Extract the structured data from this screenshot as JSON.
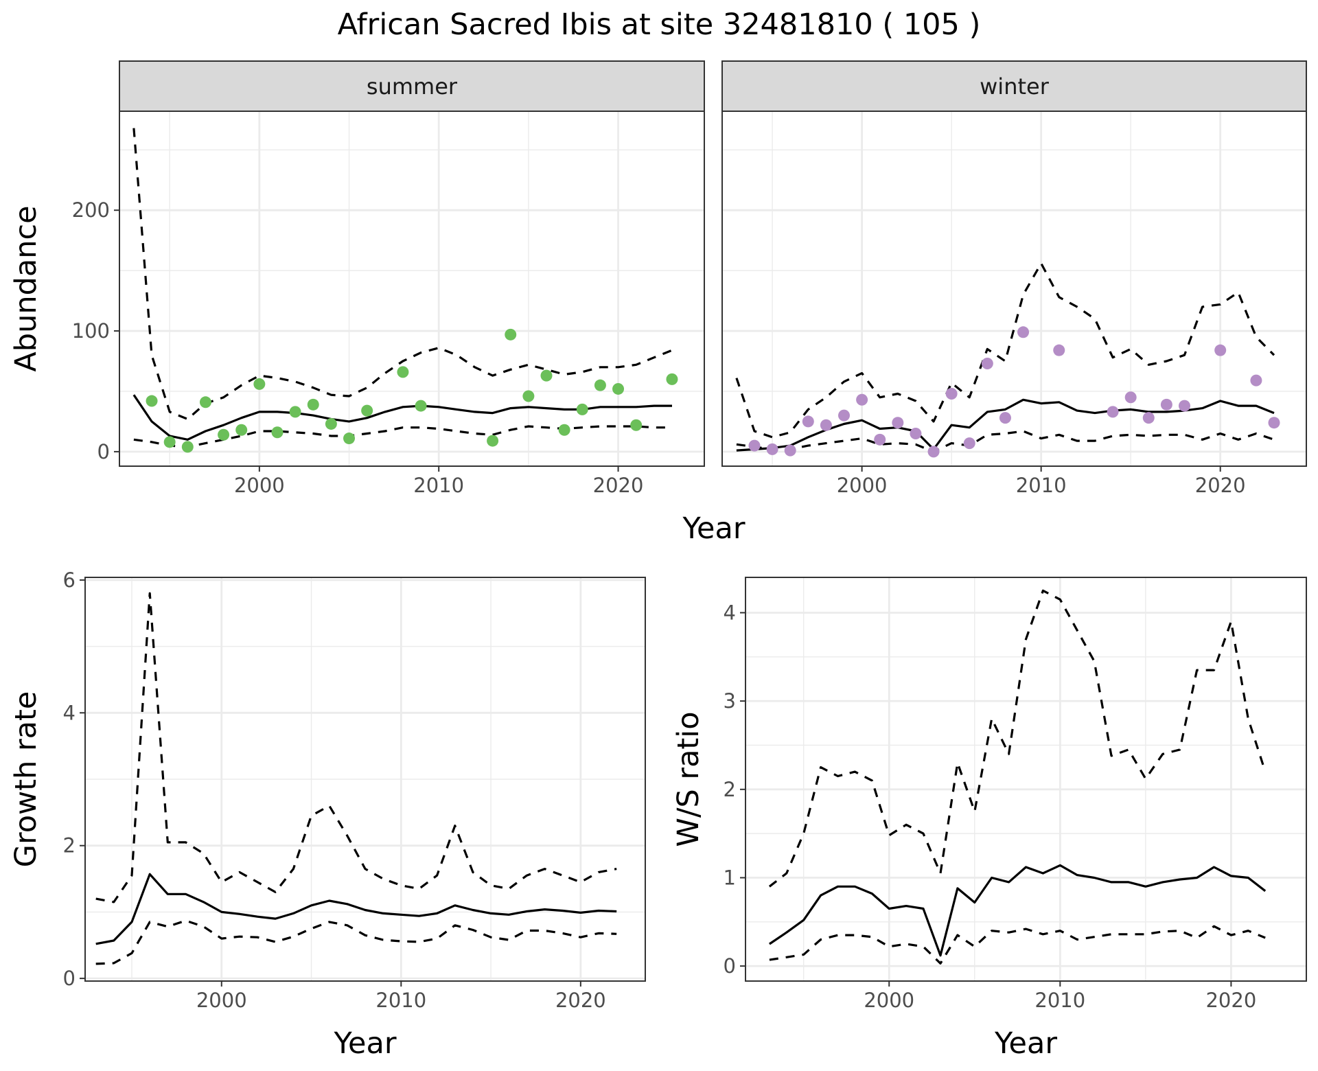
{
  "title": "African Sacred Ibis at site 32481810 ( 105 )",
  "colors": {
    "summer_points": "#6BBF59",
    "winter_points": "#B48DC6",
    "line": "#000000",
    "strip_fill": "#D9D9D9",
    "grid": "#EBEBEB"
  },
  "chart_data": [
    {
      "type": "line",
      "facet": "summer",
      "xlabel": "Year",
      "ylabel": "Abundance",
      "xticks": [
        2000,
        2010,
        2020
      ],
      "yticks": [
        0,
        100,
        200
      ],
      "xlim": [
        1992.2,
        2024.8
      ],
      "ylim": [
        -12,
        282
      ],
      "grid": true,
      "series": [
        {
          "role": "mean",
          "style": "solid",
          "x": [
            1993,
            1994,
            1995,
            1996,
            1997,
            1998,
            1999,
            2000,
            2001,
            2002,
            2003,
            2004,
            2005,
            2006,
            2007,
            2008,
            2009,
            2010,
            2011,
            2012,
            2013,
            2014,
            2015,
            2016,
            2017,
            2018,
            2019,
            2020,
            2021,
            2022,
            2023
          ],
          "y": [
            47,
            25,
            13,
            10,
            17,
            22,
            28,
            33,
            33,
            32,
            30,
            27,
            25,
            28,
            33,
            37,
            38,
            37,
            35,
            33,
            32,
            36,
            37,
            36,
            35,
            35,
            37,
            37,
            37,
            38,
            38
          ]
        },
        {
          "role": "upper",
          "style": "dashed",
          "x": [
            1993,
            1994,
            1995,
            1996,
            1997,
            1998,
            1999,
            2000,
            2001,
            2002,
            2003,
            2004,
            2005,
            2006,
            2007,
            2008,
            2009,
            2010,
            2011,
            2012,
            2013,
            2014,
            2015,
            2016,
            2017,
            2018,
            2019,
            2020,
            2021,
            2022,
            2023
          ],
          "y": [
            268,
            80,
            33,
            27,
            40,
            45,
            55,
            63,
            61,
            58,
            53,
            47,
            46,
            53,
            65,
            75,
            82,
            86,
            80,
            70,
            63,
            68,
            72,
            68,
            64,
            66,
            70,
            70,
            72,
            78,
            84
          ]
        },
        {
          "role": "lower",
          "style": "dashed",
          "x": [
            1993,
            1994,
            1995,
            1996,
            1997,
            1998,
            1999,
            2000,
            2001,
            2002,
            2003,
            2004,
            2005,
            2006,
            2007,
            2008,
            2009,
            2010,
            2011,
            2012,
            2013,
            2014,
            2015,
            2016,
            2017,
            2018,
            2019,
            2020,
            2021,
            2022,
            2023
          ],
          "y": [
            10,
            8,
            5,
            4,
            7,
            10,
            13,
            17,
            17,
            16,
            15,
            13,
            13,
            15,
            17,
            20,
            20,
            19,
            17,
            15,
            14,
            18,
            21,
            20,
            19,
            20,
            21,
            21,
            21,
            20,
            20
          ]
        },
        {
          "role": "observed",
          "style": "points",
          "x": [
            1994,
            1995,
            1996,
            1997,
            1998,
            1999,
            2000,
            2001,
            2002,
            2003,
            2004,
            2005,
            2006,
            2008,
            2009,
            2013,
            2014,
            2015,
            2016,
            2017,
            2018,
            2019,
            2020,
            2021,
            2023
          ],
          "y": [
            42,
            8,
            4,
            41,
            14,
            18,
            56,
            16,
            33,
            39,
            23,
            11,
            34,
            66,
            38,
            9,
            97,
            46,
            63,
            18,
            35,
            55,
            52,
            22,
            60
          ]
        }
      ]
    },
    {
      "type": "line",
      "facet": "winter",
      "xlabel": "Year",
      "ylabel": "Abundance",
      "xticks": [
        2000,
        2010,
        2020
      ],
      "yticks": [
        0,
        100,
        200
      ],
      "xlim": [
        1992.2,
        2024.8
      ],
      "ylim": [
        -12,
        282
      ],
      "grid": true,
      "series": [
        {
          "role": "mean",
          "style": "solid",
          "x": [
            1993,
            1994,
            1995,
            1996,
            1997,
            1998,
            1999,
            2000,
            2001,
            2002,
            2003,
            2004,
            2005,
            2006,
            2007,
            2008,
            2009,
            2010,
            2011,
            2012,
            2013,
            2014,
            2015,
            2016,
            2017,
            2018,
            2019,
            2020,
            2021,
            2022,
            2023
          ],
          "y": [
            1,
            2,
            3,
            5,
            12,
            18,
            23,
            26,
            19,
            20,
            17,
            2,
            22,
            20,
            33,
            35,
            43,
            40,
            41,
            34,
            32,
            34,
            35,
            33,
            33,
            34,
            36,
            42,
            38,
            38,
            32
          ]
        },
        {
          "role": "upper",
          "style": "dashed",
          "x": [
            1993,
            1994,
            1995,
            1996,
            1997,
            1998,
            1999,
            2000,
            2001,
            2002,
            2003,
            2004,
            2005,
            2006,
            2007,
            2008,
            2009,
            2010,
            2011,
            2012,
            2013,
            2014,
            2015,
            2016,
            2017,
            2018,
            2019,
            2020,
            2021,
            2022,
            2023
          ],
          "y": [
            61,
            17,
            12,
            16,
            35,
            45,
            58,
            65,
            45,
            48,
            42,
            25,
            57,
            45,
            85,
            75,
            130,
            156,
            128,
            120,
            110,
            78,
            85,
            72,
            75,
            80,
            120,
            122,
            132,
            95,
            80
          ]
        },
        {
          "role": "lower",
          "style": "dashed",
          "x": [
            1993,
            1994,
            1995,
            1996,
            1997,
            1998,
            1999,
            2000,
            2001,
            2002,
            2003,
            2004,
            2005,
            2006,
            2007,
            2008,
            2009,
            2010,
            2011,
            2012,
            2013,
            2014,
            2015,
            2016,
            2017,
            2018,
            2019,
            2020,
            2021,
            2022,
            2023
          ],
          "y": [
            6,
            4,
            2,
            2,
            5,
            7,
            9,
            11,
            6,
            7,
            6,
            0,
            7,
            5,
            14,
            15,
            17,
            11,
            14,
            9,
            9,
            13,
            14,
            13,
            14,
            14,
            10,
            15,
            10,
            15,
            10
          ]
        },
        {
          "role": "observed",
          "style": "points",
          "x": [
            1994,
            1995,
            1996,
            1997,
            1998,
            1999,
            2000,
            2001,
            2002,
            2003,
            2004,
            2005,
            2006,
            2007,
            2008,
            2009,
            2011,
            2014,
            2015,
            2016,
            2017,
            2018,
            2020,
            2022,
            2023
          ],
          "y": [
            5,
            2,
            1,
            25,
            22,
            30,
            43,
            10,
            24,
            15,
            0,
            48,
            7,
            73,
            28,
            99,
            84,
            33,
            45,
            28,
            39,
            38,
            84,
            59,
            24
          ]
        }
      ]
    },
    {
      "type": "line",
      "facet": "growth",
      "xlabel": "Year",
      "ylabel": "Growth rate",
      "xticks": [
        2000,
        2010,
        2020
      ],
      "yticks": [
        0,
        2,
        4,
        6
      ],
      "xlim": [
        1992.4,
        2023.6
      ],
      "ylim": [
        -0.04,
        6.04
      ],
      "grid": true,
      "series": [
        {
          "role": "mean",
          "style": "solid",
          "x": [
            1993,
            1994,
            1995,
            1996,
            1997,
            1998,
            1999,
            2000,
            2001,
            2002,
            2003,
            2004,
            2005,
            2006,
            2007,
            2008,
            2009,
            2010,
            2011,
            2012,
            2013,
            2014,
            2015,
            2016,
            2017,
            2018,
            2019,
            2020,
            2021,
            2022
          ],
          "y": [
            0.52,
            0.57,
            0.85,
            1.57,
            1.27,
            1.27,
            1.15,
            1.0,
            0.97,
            0.93,
            0.9,
            0.98,
            1.1,
            1.17,
            1.12,
            1.03,
            0.98,
            0.96,
            0.94,
            0.98,
            1.1,
            1.03,
            0.98,
            0.96,
            1.01,
            1.04,
            1.02,
            0.99,
            1.02,
            1.01
          ]
        },
        {
          "role": "upper",
          "style": "dashed",
          "x": [
            1993,
            1994,
            1995,
            1996,
            1997,
            1998,
            1999,
            2000,
            2001,
            2002,
            2003,
            2004,
            2005,
            2006,
            2007,
            2008,
            2009,
            2010,
            2011,
            2012,
            2013,
            2014,
            2015,
            2016,
            2017,
            2018,
            2019,
            2020,
            2021,
            2022
          ],
          "y": [
            1.2,
            1.15,
            1.55,
            5.8,
            2.05,
            2.05,
            1.88,
            1.45,
            1.6,
            1.45,
            1.3,
            1.65,
            2.45,
            2.6,
            2.15,
            1.65,
            1.5,
            1.4,
            1.35,
            1.55,
            2.3,
            1.6,
            1.4,
            1.35,
            1.55,
            1.65,
            1.55,
            1.45,
            1.6,
            1.65
          ]
        },
        {
          "role": "lower",
          "style": "dashed",
          "x": [
            1993,
            1994,
            1995,
            1996,
            1997,
            1998,
            1999,
            2000,
            2001,
            2002,
            2003,
            2004,
            2005,
            2006,
            2007,
            2008,
            2009,
            2010,
            2011,
            2012,
            2013,
            2014,
            2015,
            2016,
            2017,
            2018,
            2019,
            2020,
            2021,
            2022
          ],
          "y": [
            0.22,
            0.23,
            0.38,
            0.85,
            0.78,
            0.87,
            0.78,
            0.6,
            0.63,
            0.62,
            0.55,
            0.63,
            0.75,
            0.85,
            0.8,
            0.65,
            0.58,
            0.56,
            0.55,
            0.6,
            0.8,
            0.73,
            0.62,
            0.58,
            0.72,
            0.72,
            0.68,
            0.62,
            0.68,
            0.67
          ]
        }
      ]
    },
    {
      "type": "line",
      "facet": "ratio",
      "xlabel": "Year",
      "ylabel": "W/S ratio",
      "xticks": [
        2000,
        2010,
        2020
      ],
      "yticks": [
        0,
        1,
        2,
        3,
        4
      ],
      "xlim": [
        1991.6,
        2024.4
      ],
      "ylim": [
        -0.17,
        4.4
      ],
      "grid": true,
      "series": [
        {
          "role": "mean",
          "style": "solid",
          "x": [
            1993,
            1994,
            1995,
            1996,
            1997,
            1998,
            1999,
            2000,
            2001,
            2002,
            2003,
            2004,
            2005,
            2006,
            2007,
            2008,
            2009,
            2010,
            2011,
            2012,
            2013,
            2014,
            2015,
            2016,
            2017,
            2018,
            2019,
            2020,
            2021,
            2022
          ],
          "y": [
            0.25,
            0.38,
            0.52,
            0.8,
            0.9,
            0.9,
            0.82,
            0.65,
            0.68,
            0.65,
            0.12,
            0.88,
            0.72,
            1.0,
            0.95,
            1.12,
            1.05,
            1.14,
            1.03,
            1.0,
            0.95,
            0.95,
            0.9,
            0.95,
            0.98,
            1.0,
            1.12,
            1.02,
            1.0,
            0.85
          ]
        },
        {
          "role": "upper",
          "style": "dashed",
          "x": [
            1993,
            1994,
            1995,
            1996,
            1997,
            1998,
            1999,
            2000,
            2001,
            2002,
            2003,
            2004,
            2005,
            2006,
            2007,
            2008,
            2009,
            2010,
            2011,
            2012,
            2013,
            2014,
            2015,
            2016,
            2017,
            2018,
            2019,
            2020,
            2021,
            2022
          ],
          "y": [
            0.9,
            1.05,
            1.5,
            2.25,
            2.15,
            2.2,
            2.1,
            1.48,
            1.6,
            1.5,
            1.05,
            2.3,
            1.75,
            2.8,
            2.4,
            3.7,
            4.25,
            4.15,
            3.8,
            3.45,
            2.38,
            2.45,
            2.12,
            2.4,
            2.45,
            3.35,
            3.35,
            3.9,
            2.8,
            2.2
          ]
        },
        {
          "role": "lower",
          "style": "dashed",
          "x": [
            1993,
            1994,
            1995,
            1996,
            1997,
            1998,
            1999,
            2000,
            2001,
            2002,
            2003,
            2004,
            2005,
            2006,
            2007,
            2008,
            2009,
            2010,
            2011,
            2012,
            2013,
            2014,
            2015,
            2016,
            2017,
            2018,
            2019,
            2020,
            2021,
            2022
          ],
          "y": [
            0.07,
            0.1,
            0.13,
            0.3,
            0.35,
            0.35,
            0.33,
            0.22,
            0.25,
            0.22,
            0.03,
            0.35,
            0.22,
            0.4,
            0.38,
            0.42,
            0.36,
            0.4,
            0.3,
            0.33,
            0.36,
            0.36,
            0.36,
            0.39,
            0.4,
            0.32,
            0.45,
            0.35,
            0.4,
            0.32
          ]
        }
      ]
    }
  ]
}
